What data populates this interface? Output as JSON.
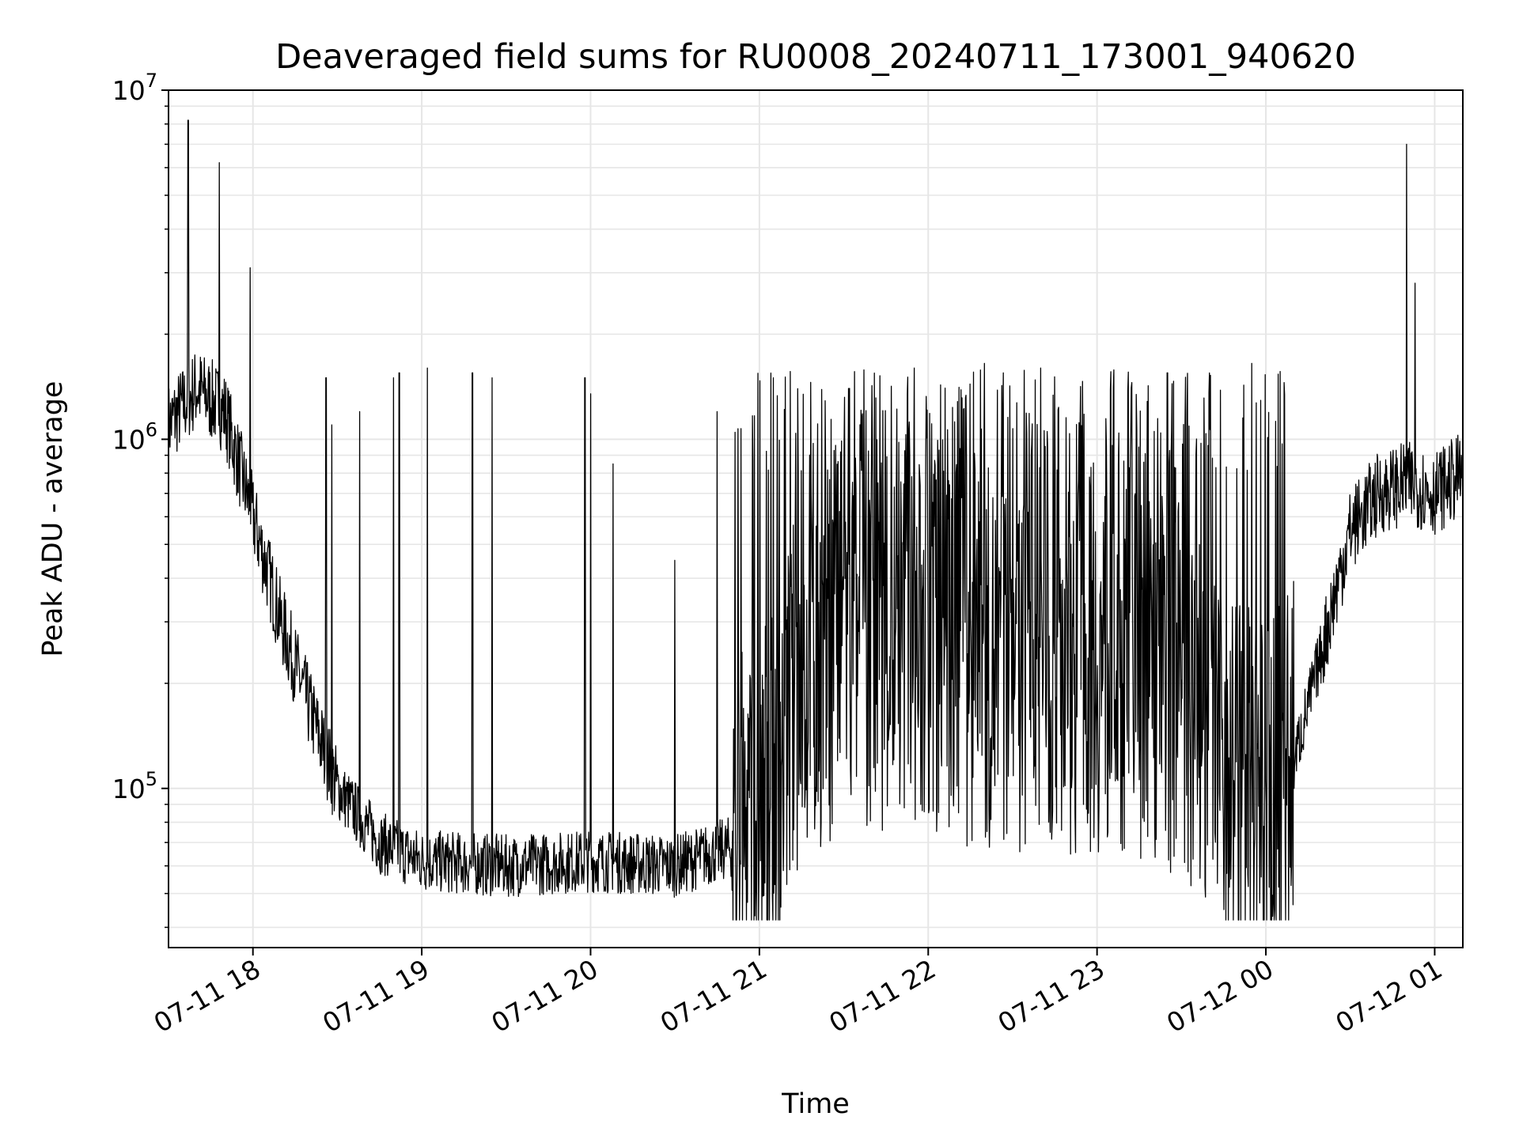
{
  "chart_data": {
    "type": "line",
    "title": "Deaveraged field sums for RU0008_20240711_173001_940620",
    "xlabel": "Time",
    "ylabel": "Peak ADU - average",
    "y_scale": "log",
    "ylim": [
      35000,
      10000000
    ],
    "xlim": [
      "2024-07-11 17:30",
      "2024-07-12 01:10"
    ],
    "grid": true,
    "series_color": "#000000",
    "x_ticks": [
      "07-11 18",
      "07-11 19",
      "07-11 20",
      "07-11 21",
      "07-11 22",
      "07-11 23",
      "07-12 00",
      "07-12 01"
    ],
    "y_ticks": [
      {
        "base": "10",
        "exp": "5",
        "value": 100000
      },
      {
        "base": "10",
        "exp": "6",
        "value": 1000000
      },
      {
        "base": "10",
        "exp": "7",
        "value": 10000000
      }
    ],
    "series": [
      {
        "x": [
          "2024-07-11 17:30",
          "2024-07-11 17:40",
          "2024-07-11 17:50",
          "2024-07-11 18:00",
          "2024-07-11 18:10",
          "2024-07-11 18:20",
          "2024-07-11 18:30",
          "2024-07-11 18:45",
          "2024-07-11 19:00",
          "2024-07-11 19:30",
          "2024-07-11 20:00",
          "2024-07-11 20:30",
          "2024-07-11 20:50",
          "2024-07-11 21:00",
          "2024-07-11 21:15",
          "2024-07-11 21:30",
          "2024-07-11 22:00",
          "2024-07-11 22:30",
          "2024-07-11 23:00",
          "2024-07-11 23:30",
          "2024-07-12 00:00",
          "2024-07-12 00:10",
          "2024-07-12 00:20",
          "2024-07-12 00:30",
          "2024-07-12 00:40",
          "2024-07-12 00:50",
          "2024-07-12 01:00",
          "2024-07-12 01:10"
        ],
        "y": [
          1100000,
          1400000,
          1200000,
          600000,
          300000,
          170000,
          100000,
          70000,
          62000,
          60000,
          62000,
          60000,
          68000,
          80000,
          200000,
          280000,
          250000,
          230000,
          230000,
          200000,
          80000,
          120000,
          250000,
          550000,
          700000,
          750000,
          700000,
          800000
        ]
      }
    ],
    "spikes": [
      {
        "x": "2024-07-11 17:37",
        "y": 8200000
      },
      {
        "x": "2024-07-11 17:48",
        "y": 6200000
      },
      {
        "x": "2024-07-11 17:59",
        "y": 3100000
      },
      {
        "x": "2024-07-11 18:26",
        "y": 1500000
      },
      {
        "x": "2024-07-11 18:28",
        "y": 1100000
      },
      {
        "x": "2024-07-11 18:38",
        "y": 1200000
      },
      {
        "x": "2024-07-11 18:50",
        "y": 1500000
      },
      {
        "x": "2024-07-11 18:52",
        "y": 1550000
      },
      {
        "x": "2024-07-11 19:02",
        "y": 1600000
      },
      {
        "x": "2024-07-11 19:18",
        "y": 1550000
      },
      {
        "x": "2024-07-11 19:25",
        "y": 1500000
      },
      {
        "x": "2024-07-11 19:58",
        "y": 1500000
      },
      {
        "x": "2024-07-11 20:00",
        "y": 1350000
      },
      {
        "x": "2024-07-11 20:08",
        "y": 850000
      },
      {
        "x": "2024-07-11 20:30",
        "y": 450000
      },
      {
        "x": "2024-07-11 20:45",
        "y": 1200000
      },
      {
        "x": "2024-07-11 21:05",
        "y": 1500000
      },
      {
        "x": "2024-07-11 21:55",
        "y": 1600000
      },
      {
        "x": "2024-07-11 22:20",
        "y": 1650000
      },
      {
        "x": "2024-07-11 22:40",
        "y": 1600000
      },
      {
        "x": "2024-07-11 23:25",
        "y": 1550000
      },
      {
        "x": "2024-07-11 23:55",
        "y": 1650000
      },
      {
        "x": "2024-07-12 00:50",
        "y": 7000000
      },
      {
        "x": "2024-07-12 00:53",
        "y": 2800000
      }
    ]
  }
}
